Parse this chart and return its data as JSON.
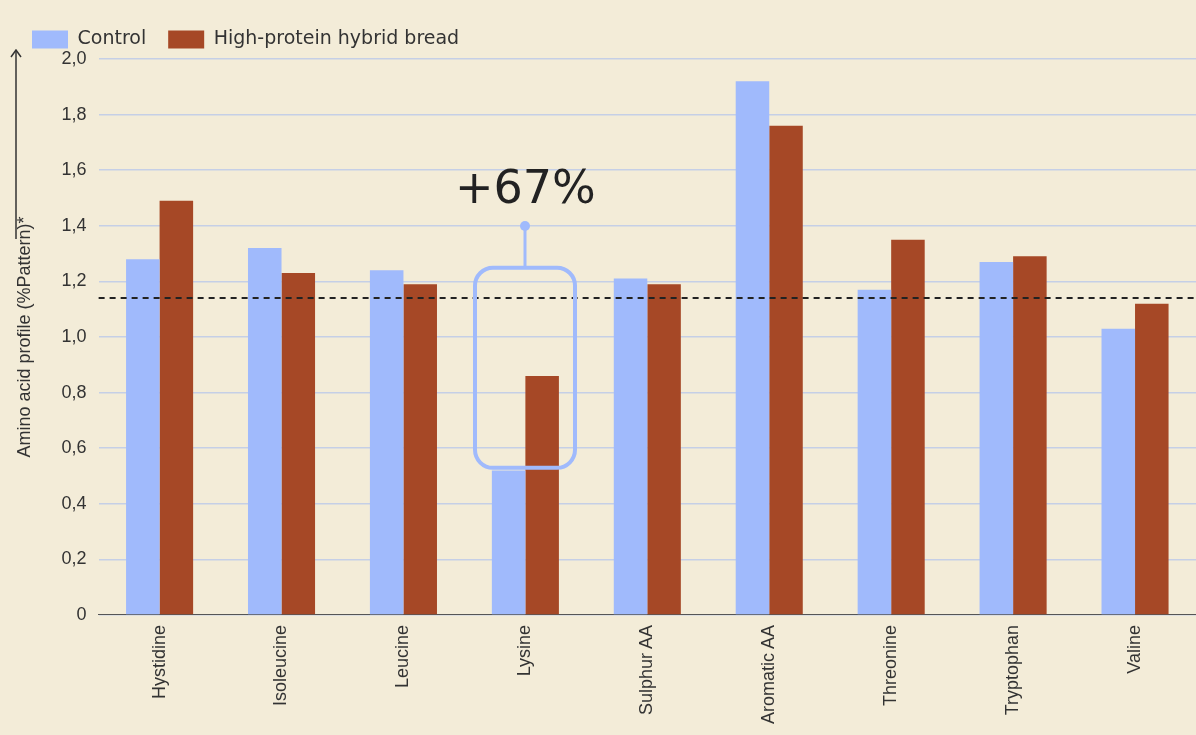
{
  "chart_data": {
    "type": "bar",
    "ylabel": "Amino acid profile (%Pattern)*",
    "categories": [
      "Hystidine",
      "Isoleucine",
      "Leucine",
      "Lysine",
      "Sulphur AA",
      "Aromatic AA",
      "Threonine",
      "Tryptophan",
      "Valine"
    ],
    "series": [
      {
        "name": "Control",
        "color": "#a0bafc",
        "values": [
          1.28,
          1.32,
          1.24,
          0.52,
          1.21,
          1.92,
          1.17,
          1.27,
          1.03
        ]
      },
      {
        "name": "High-protein hybrid bread",
        "color": "#a64826",
        "values": [
          1.49,
          1.23,
          1.19,
          0.86,
          1.19,
          1.76,
          1.35,
          1.29,
          1.12
        ]
      }
    ],
    "ylim": [
      0,
      2
    ],
    "yticks": [
      0,
      {
        "value": 0.2,
        "label": "0,2"
      },
      {
        "value": 0.4,
        "label": "0,4"
      },
      {
        "value": 0.6,
        "label": "0,6"
      },
      {
        "value": 0.8,
        "label": "0,8"
      },
      {
        "value": 1,
        "label": "1,0"
      },
      {
        "value": 1.2,
        "label": "1,2"
      },
      {
        "value": 1.4,
        "label": "1,4"
      },
      {
        "value": 1.6,
        "label": "1,6"
      },
      {
        "value": 1.8,
        "label": "1,8"
      },
      {
        "value": 2,
        "label": "2,0"
      }
    ],
    "grid": "y",
    "legend": "top left",
    "ref_lines": [
      {
        "axis": "y",
        "value": 1.14,
        "color": "#222222",
        "line_style": "dashed"
      }
    ],
    "annotations": [
      {
        "text": "+67%",
        "x": "Lysine",
        "y": 1.4
      }
    ]
  }
}
